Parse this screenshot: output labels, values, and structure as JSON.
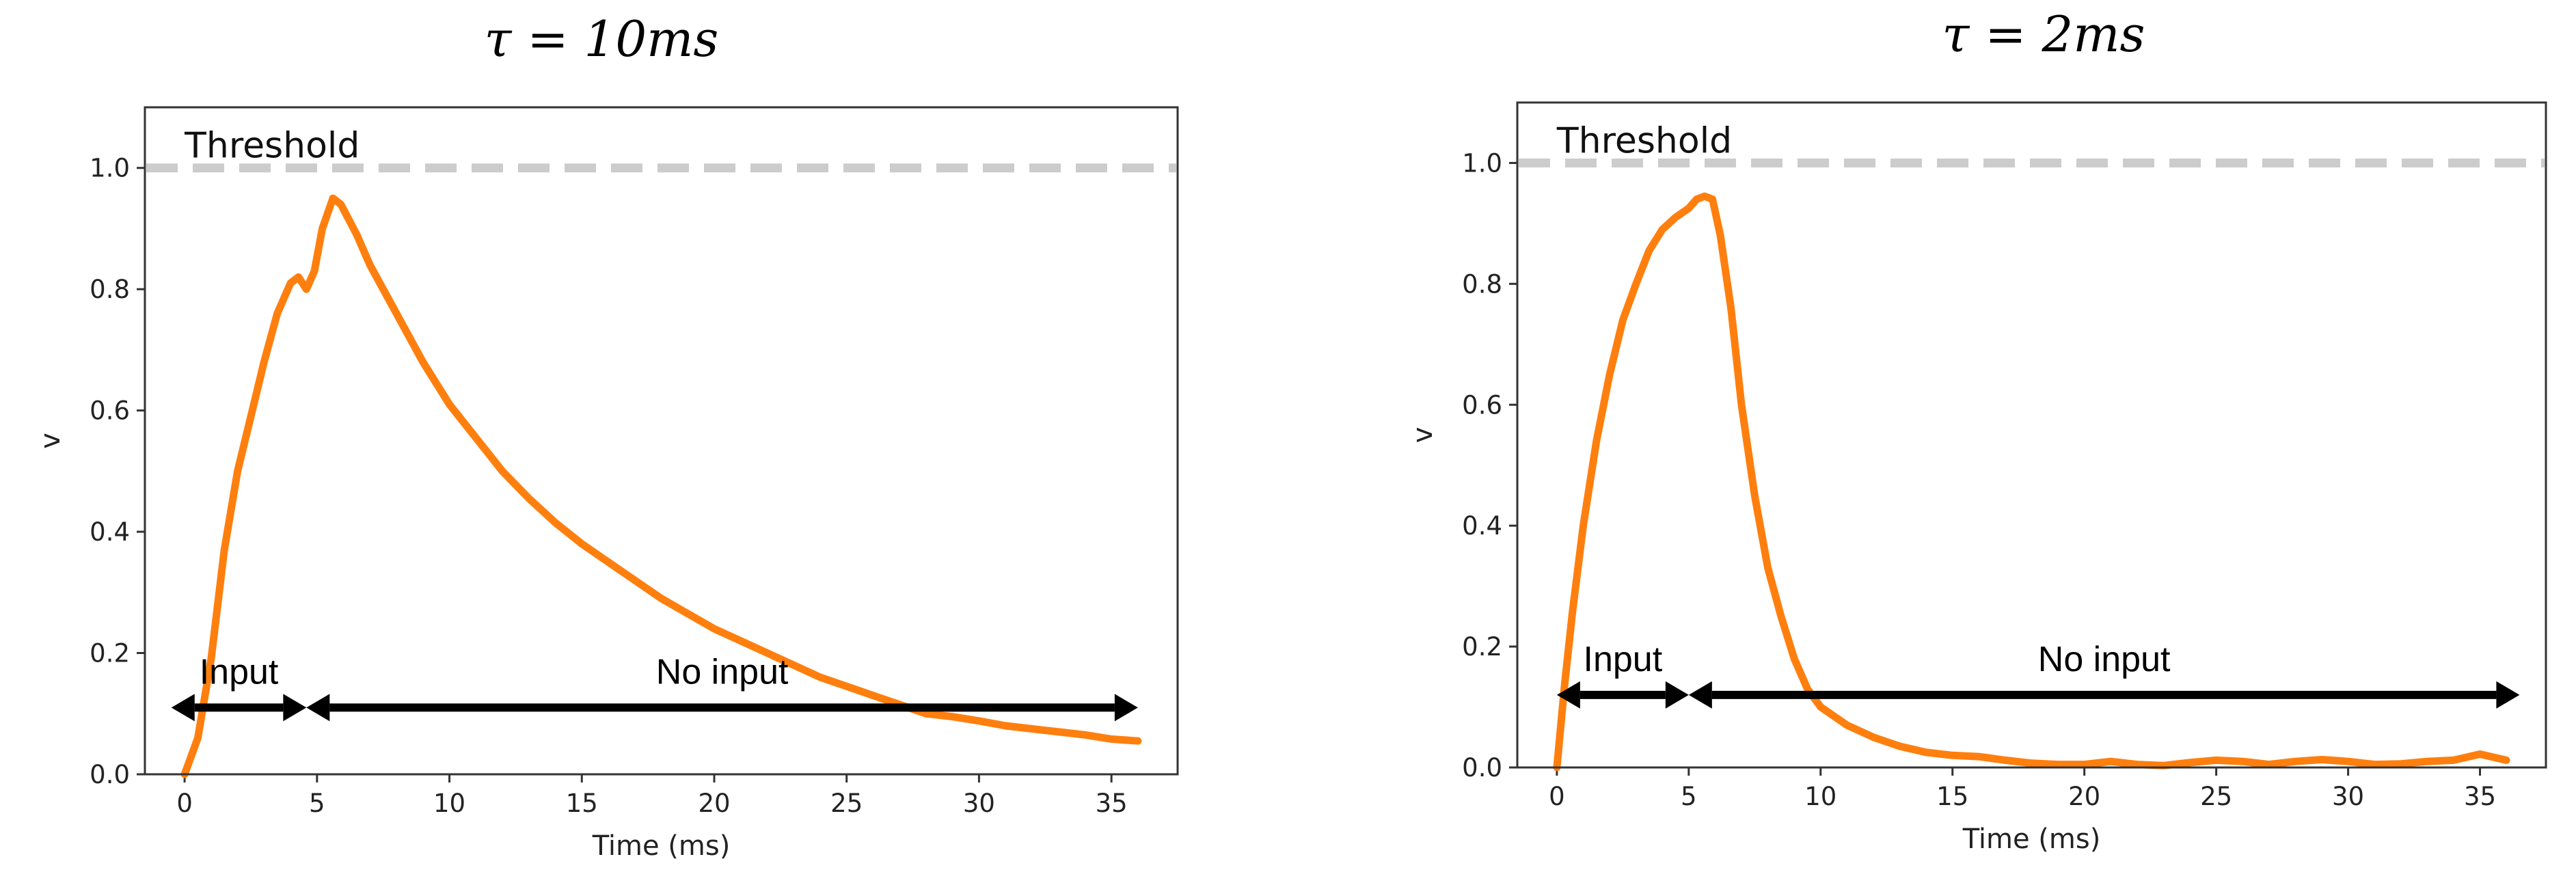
{
  "chart_data": [
    {
      "type": "line",
      "title": "τ = 10ms",
      "xlabel": "Time (ms)",
      "ylabel": "v",
      "xlim": [
        -1.5,
        37.5
      ],
      "ylim": [
        0,
        1.1
      ],
      "xticks": [
        0,
        5,
        10,
        15,
        20,
        25,
        30,
        35
      ],
      "yticks": [
        0.0,
        0.2,
        0.4,
        0.6,
        0.8,
        1.0
      ],
      "xtick_labels": [
        "0",
        "5",
        "10",
        "15",
        "20",
        "25",
        "30",
        "35"
      ],
      "ytick_labels": [
        "0.0",
        "0.2",
        "0.4",
        "0.6",
        "0.8",
        "1.0"
      ],
      "grid": false,
      "threshold": {
        "value": 1.0,
        "label": "Threshold",
        "color": "#cccccc"
      },
      "series_color": "#ff7f0e",
      "x": [
        0,
        0.5,
        1,
        1.5,
        2,
        2.5,
        3,
        3.5,
        4,
        4.3,
        4.6,
        4.9,
        5.2,
        5.6,
        5.9,
        6.5,
        7,
        8,
        9,
        10,
        11,
        12,
        13,
        14,
        15,
        16,
        17,
        18,
        19,
        20,
        21,
        22,
        23,
        24,
        25,
        26,
        27,
        28,
        29,
        30,
        31,
        32,
        33,
        34,
        35,
        36
      ],
      "y": [
        0.0,
        0.06,
        0.19,
        0.37,
        0.5,
        0.59,
        0.68,
        0.76,
        0.81,
        0.82,
        0.8,
        0.83,
        0.9,
        0.95,
        0.94,
        0.89,
        0.84,
        0.76,
        0.68,
        0.61,
        0.555,
        0.5,
        0.455,
        0.415,
        0.38,
        0.35,
        0.32,
        0.29,
        0.265,
        0.24,
        0.22,
        0.2,
        0.18,
        0.16,
        0.145,
        0.13,
        0.115,
        0.1,
        0.095,
        0.088,
        0.08,
        0.075,
        0.07,
        0.065,
        0.058,
        0.055
      ],
      "annotations": [
        {
          "text": "Input",
          "x_start": -0.5,
          "x_end": 4.6,
          "y": 0.11
        },
        {
          "text": "No input",
          "x_start": 4.6,
          "x_end": 36.0,
          "y": 0.11
        }
      ]
    },
    {
      "type": "line",
      "title": "τ = 2ms",
      "xlabel": "Time (ms)",
      "ylabel": "v",
      "xlim": [
        -1.5,
        37.5
      ],
      "ylim": [
        0,
        1.1
      ],
      "xticks": [
        0,
        5,
        10,
        15,
        20,
        25,
        30,
        35
      ],
      "yticks": [
        0.0,
        0.2,
        0.4,
        0.6,
        0.8,
        1.0
      ],
      "xtick_labels": [
        "0",
        "5",
        "10",
        "15",
        "20",
        "25",
        "30",
        "35"
      ],
      "ytick_labels": [
        "0.0",
        "0.2",
        "0.4",
        "0.6",
        "0.8",
        "1.0"
      ],
      "grid": false,
      "threshold": {
        "value": 1.0,
        "label": "Threshold",
        "color": "#cccccc"
      },
      "series_color": "#ff7f0e",
      "x": [
        0,
        0.3,
        0.6,
        1,
        1.5,
        2,
        2.5,
        3,
        3.5,
        4,
        4.5,
        5,
        5.3,
        5.6,
        5.9,
        6.2,
        6.6,
        7,
        7.5,
        8,
        8.5,
        9,
        9.5,
        10,
        11,
        12,
        13,
        14,
        15,
        16,
        17,
        18,
        19,
        20,
        21,
        22,
        23,
        24,
        25,
        26,
        27,
        28,
        29,
        30,
        31,
        32,
        33,
        34,
        35,
        36
      ],
      "y": [
        0.0,
        0.14,
        0.26,
        0.4,
        0.54,
        0.65,
        0.74,
        0.8,
        0.855,
        0.89,
        0.91,
        0.925,
        0.94,
        0.945,
        0.94,
        0.88,
        0.76,
        0.6,
        0.45,
        0.33,
        0.25,
        0.18,
        0.13,
        0.1,
        0.07,
        0.05,
        0.035,
        0.025,
        0.02,
        0.018,
        0.012,
        0.007,
        0.005,
        0.005,
        0.01,
        0.005,
        0.003,
        0.008,
        0.012,
        0.01,
        0.005,
        0.01,
        0.013,
        0.01,
        0.005,
        0.006,
        0.01,
        0.012,
        0.022,
        0.012
      ],
      "annotations": [
        {
          "text": "Input",
          "x_start": 0.0,
          "x_end": 5.0,
          "y": 0.12
        },
        {
          "text": "No input",
          "x_start": 5.0,
          "x_end": 36.5,
          "y": 0.12
        }
      ]
    }
  ]
}
